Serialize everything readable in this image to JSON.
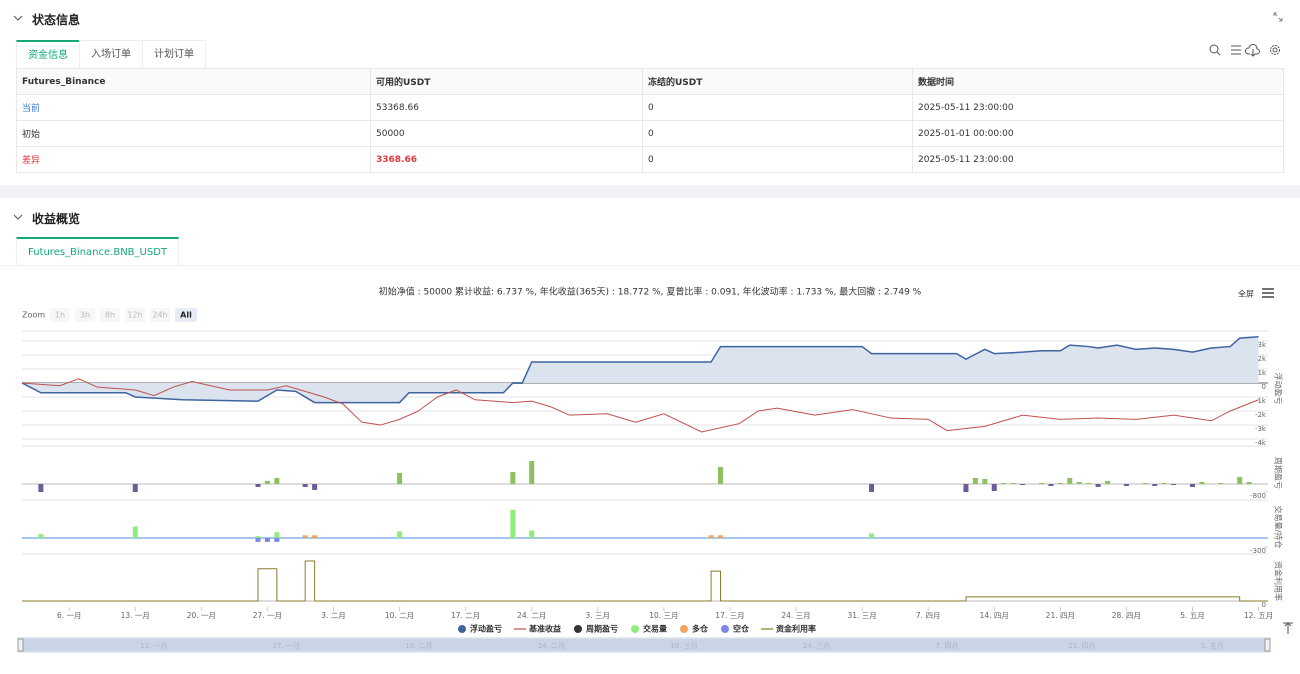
{
  "status_panel": {
    "title": "状态信息",
    "tabs": [
      "资金信息",
      "入场订单",
      "计划订单"
    ],
    "table": {
      "header": [
        "Futures_Binance",
        "可用的USDT",
        "冻结的USDT",
        "数据时间"
      ],
      "rows": [
        [
          "当前",
          "53368.66",
          "0",
          "2025-05-11 23:00:00"
        ],
        [
          "初始",
          "50000",
          "0",
          "2025-01-01 00:00:00"
        ],
        [
          "差异",
          "3368.66",
          "0",
          "2025-05-11 23:00:00"
        ]
      ]
    }
  },
  "profit_panel": {
    "title": "收益概览",
    "tabs": [
      "Futures_Binance.BNB_USDT"
    ],
    "summary": "初始净值 : 50000 累计收益: 6.737 %, 年化收益(365天) : 18.772 %, 夏普比率 : 0.091, 年化波动率 : 1.733 %, 最大回撤 : 2.749 %",
    "fullscreen": "全屏",
    "zoom_label": "Zoom",
    "zoom_buttons": [
      "1h",
      "3h",
      "8h",
      "12h",
      "24h",
      "All"
    ],
    "navigator_labels": [
      "13. 一月",
      "27. 一月",
      "10. 二月",
      "24. 二月",
      "10. 三月",
      "24. 三月",
      "7. 四月",
      "21. 四月",
      "5. 五月"
    ]
  },
  "chart_data": [
    {
      "type": "line",
      "axis_title": "浮动盈亏",
      "xlim": [
        0,
        132
      ],
      "ylim": [
        -4430,
        3640
      ],
      "grid": true,
      "yticks": [
        {
          "value": 3000,
          "label": "3k"
        },
        {
          "value": 2000,
          "label": "2k"
        },
        {
          "value": 1000,
          "label": "1k"
        },
        0,
        {
          "value": -1000,
          "label": "-1k"
        },
        {
          "value": -2000,
          "label": "-2k"
        },
        {
          "value": -3000,
          "label": "-3k"
        },
        {
          "value": -4000,
          "label": "-4k"
        }
      ],
      "series": [
        {
          "name": "浮动盈亏",
          "type": "area",
          "color": "#3e64a0",
          "fill": "#dbe3ee",
          "x": [
            0,
            2,
            11,
            12,
            17,
            25,
            27,
            29,
            31,
            40,
            41,
            51,
            52,
            53,
            54,
            73,
            74,
            89,
            90,
            99,
            100,
            102,
            103,
            106,
            108,
            110,
            111,
            113,
            114,
            116,
            118,
            120,
            122,
            124,
            126,
            128,
            129,
            131
          ],
          "values": [
            0,
            -700,
            -700,
            -1000,
            -1200,
            -1300,
            -500,
            -600,
            -1400,
            -1400,
            -700,
            -700,
            0,
            0,
            1500,
            1500,
            2600,
            2600,
            2100,
            2100,
            1700,
            2400,
            2100,
            2200,
            2300,
            2300,
            2700,
            2600,
            2500,
            2700,
            2400,
            2500,
            2400,
            2200,
            2500,
            2600,
            3200,
            3300
          ]
        },
        {
          "name": "基准收益",
          "type": "line",
          "color": "#c0504d",
          "x": [
            0,
            4,
            6,
            8,
            12,
            14,
            16,
            18,
            22,
            26,
            28,
            32,
            34,
            36,
            38,
            40,
            42,
            44,
            46,
            48,
            52,
            54,
            56,
            58,
            62,
            65,
            68,
            72,
            76,
            78,
            80,
            84,
            88,
            92,
            96,
            98,
            102,
            106,
            110,
            114,
            118,
            122,
            126,
            128,
            131
          ],
          "values": [
            0,
            -200,
            300,
            -300,
            -500,
            -900,
            -300,
            100,
            -500,
            -500,
            -200,
            -1000,
            -1500,
            -2800,
            -3000,
            -2600,
            -2000,
            -1000,
            -500,
            -1200,
            -1400,
            -1300,
            -1700,
            -2300,
            -2200,
            -2800,
            -2200,
            -3500,
            -2900,
            -2000,
            -1800,
            -2300,
            -1900,
            -2500,
            -2600,
            -3400,
            -3100,
            -2300,
            -2600,
            -2500,
            -2600,
            -2300,
            -2700,
            -2000,
            -1200
          ]
        }
      ]
    },
    {
      "type": "bar",
      "axis_title": "周期盈亏",
      "xlim": [
        0,
        132
      ],
      "ylim": [
        -1500,
        3700
      ],
      "grid": false,
      "yticks": [
        -800
      ],
      "series": [
        {
          "name": "周期盈亏",
          "color": "#333333",
          "positive_color": "#8dc15f",
          "negative_color": "#6f5b9a",
          "x": [
            2,
            12,
            25,
            26,
            27,
            30,
            31,
            40,
            52,
            54,
            73,
            74,
            90,
            100,
            101,
            102,
            103,
            104,
            105,
            106,
            108,
            109,
            110,
            111,
            112,
            113,
            114,
            115,
            117,
            119,
            120,
            121,
            122,
            124,
            125,
            127,
            129,
            130
          ],
          "values": [
            -800,
            -800,
            -300,
            300,
            600,
            -300,
            -600,
            1100,
            1200,
            2300,
            50,
            1700,
            -800,
            -800,
            600,
            500,
            -700,
            100,
            100,
            -100,
            100,
            -200,
            100,
            600,
            200,
            100,
            -300,
            300,
            -200,
            100,
            -200,
            100,
            -100,
            -300,
            200,
            100,
            700,
            200
          ]
        }
      ]
    },
    {
      "type": "bar",
      "axis_title": "交易量/持仓",
      "xlim": [
        0,
        132
      ],
      "ylim": [
        -500,
        1230
      ],
      "grid": false,
      "yticks": [
        -300
      ],
      "series": [
        {
          "name": "交易量",
          "color": "#90ed7d",
          "x": [
            2,
            12,
            25,
            27,
            40,
            52,
            54,
            90
          ],
          "values": [
            130,
            380,
            60,
            190,
            220,
            940,
            250,
            150
          ]
        },
        {
          "name": "多仓",
          "color": "#f7a35c",
          "x": [
            30,
            31,
            73,
            74
          ],
          "values": [
            90,
            90,
            90,
            90
          ]
        },
        {
          "name": "空仓",
          "color": "#8085e9",
          "x": [
            25,
            26,
            27
          ],
          "values": [
            -130,
            -130,
            -130
          ]
        }
      ]
    },
    {
      "type": "line",
      "axis_title": "资金利用率",
      "xlim": [
        0,
        132
      ],
      "ylim": [
        -0.13,
        1
      ],
      "grid": false,
      "yticks": [
        0
      ],
      "xticks": [
        {
          "value": 5,
          "label": "6. 一月"
        },
        {
          "value": 12,
          "label": "13. 一月"
        },
        {
          "value": 19,
          "label": "20. 一月"
        },
        {
          "value": 26,
          "label": "27. 一月"
        },
        {
          "value": 33,
          "label": "3. 二月"
        },
        {
          "value": 40,
          "label": "10. 二月"
        },
        {
          "value": 47,
          "label": "17. 二月"
        },
        {
          "value": 54,
          "label": "24. 二月"
        },
        {
          "value": 61,
          "label": "3. 三月"
        },
        {
          "value": 68,
          "label": "10. 三月"
        },
        {
          "value": 75,
          "label": "17. 三月"
        },
        {
          "value": 82,
          "label": "24. 三月"
        },
        {
          "value": 89,
          "label": "31. 三月"
        },
        {
          "value": 96,
          "label": "7. 四月"
        },
        {
          "value": 103,
          "label": "14. 四月"
        },
        {
          "value": 110,
          "label": "21. 四月"
        },
        {
          "value": 117,
          "label": "28. 四月"
        },
        {
          "value": 124,
          "label": "5. 五月"
        },
        {
          "value": 131,
          "label": "12. 五月"
        }
      ],
      "series": [
        {
          "name": "资金利用率",
          "type": "line",
          "color": "#8a7a2a",
          "x": [
            0,
            25,
            25,
            27,
            27,
            30,
            30,
            31,
            31,
            73,
            73,
            74,
            74,
            100,
            100,
            129,
            129,
            132
          ],
          "values": [
            0,
            0,
            0.7,
            0.7,
            0,
            0,
            0.87,
            0.87,
            0,
            0,
            0.65,
            0.65,
            0,
            0,
            0.09,
            0.09,
            0,
            0
          ]
        }
      ]
    }
  ]
}
